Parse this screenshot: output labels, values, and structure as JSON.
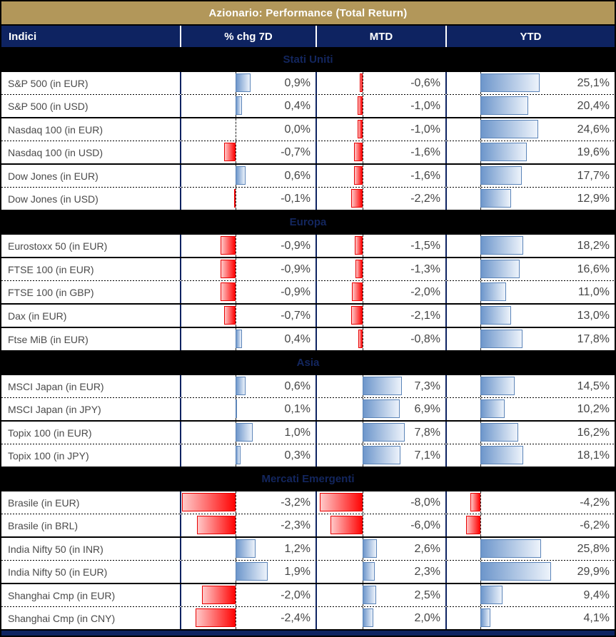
{
  "title": "Azionario: Performance (Total Return)",
  "header": {
    "indici": "Indici",
    "chg7d": "% chg 7D",
    "mtd": "MTD",
    "ytd": "YTD"
  },
  "colors": {
    "title_bg": "#B2975A",
    "header_bg": "#0E2361",
    "positive_bar": "#6D96CB",
    "positive_bar_border": "#5B84B8",
    "negative_bar": "#FF0505",
    "negative_bar_border": "#E80000",
    "section_band_bg": "#000000",
    "section_band_text": "#13265E"
  },
  "chart_data": {
    "type": "table",
    "title": "Azionario: Performance (Total Return)",
    "columns": [
      "Indici",
      "% chg 7D",
      "MTD",
      "YTD"
    ],
    "unit": "%",
    "value_format": "italian-decimal-comma",
    "bar_style": "positive blue gradient right of dashed zero baseline, negative red gradient left of baseline",
    "sections": [
      {
        "label": "Stati Uniti",
        "groups": [
          [
            {
              "name": "S&P 500 (in EUR)",
              "chg7d": 0.9,
              "mtd": -0.6,
              "ytd": 25.1
            },
            {
              "name": "S&P 500 (in USD)",
              "chg7d": 0.4,
              "mtd": -1.0,
              "ytd": 20.4
            }
          ],
          [
            {
              "name": "Nasdaq 100 (in EUR)",
              "chg7d": 0.0,
              "mtd": -1.0,
              "ytd": 24.6
            },
            {
              "name": "Nasdaq 100 (in USD)",
              "chg7d": -0.7,
              "mtd": -1.6,
              "ytd": 19.6
            }
          ],
          [
            {
              "name": "Dow Jones (in EUR)",
              "chg7d": 0.6,
              "mtd": -1.6,
              "ytd": 17.7
            },
            {
              "name": "Dow Jones (in USD)",
              "chg7d": -0.1,
              "mtd": -2.2,
              "ytd": 12.9
            }
          ]
        ]
      },
      {
        "label": "Europa",
        "groups": [
          [
            {
              "name": "Eurostoxx 50 (in EUR)",
              "chg7d": -0.9,
              "mtd": -1.5,
              "ytd": 18.2
            }
          ],
          [
            {
              "name": "FTSE 100 (in EUR)",
              "chg7d": -0.9,
              "mtd": -1.3,
              "ytd": 16.6
            },
            {
              "name": "FTSE 100 (in GBP)",
              "chg7d": -0.9,
              "mtd": -2.0,
              "ytd": 11.0
            }
          ],
          [
            {
              "name": "Dax (in EUR)",
              "chg7d": -0.7,
              "mtd": -2.1,
              "ytd": 13.0
            }
          ],
          [
            {
              "name": "Ftse MiB (in EUR)",
              "chg7d": 0.4,
              "mtd": -0.8,
              "ytd": 17.8
            }
          ]
        ]
      },
      {
        "label": "Asia",
        "groups": [
          [
            {
              "name": "MSCI Japan (in EUR)",
              "chg7d": 0.6,
              "mtd": 7.3,
              "ytd": 14.5
            },
            {
              "name": "MSCI Japan (in JPY)",
              "chg7d": 0.1,
              "mtd": 6.9,
              "ytd": 10.2
            }
          ],
          [
            {
              "name": "Topix 100 (in EUR)",
              "chg7d": 1.0,
              "mtd": 7.8,
              "ytd": 16.2
            },
            {
              "name": "Topix 100 (in JPY)",
              "chg7d": 0.3,
              "mtd": 7.1,
              "ytd": 18.1
            }
          ]
        ]
      },
      {
        "label": "Mercati Emergenti",
        "groups": [
          [
            {
              "name": "Brasile (in EUR)",
              "chg7d": -3.2,
              "mtd": -8.0,
              "ytd": -4.2
            },
            {
              "name": "Brasile (in BRL)",
              "chg7d": -2.3,
              "mtd": -6.0,
              "ytd": -6.2
            }
          ],
          [
            {
              "name": "India Nifty 50 (in INR)",
              "chg7d": 1.2,
              "mtd": 2.6,
              "ytd": 25.8
            },
            {
              "name": "India Nifty 50 (in EUR)",
              "chg7d": 1.9,
              "mtd": 2.3,
              "ytd": 29.9
            }
          ],
          [
            {
              "name": "Shanghai Cmp (in EUR)",
              "chg7d": -2.0,
              "mtd": 2.5,
              "ytd": 9.4
            },
            {
              "name": "Shanghai Cmp (in CNY)",
              "chg7d": -2.4,
              "mtd": 2.0,
              "ytd": 4.1
            }
          ]
        ]
      }
    ]
  }
}
